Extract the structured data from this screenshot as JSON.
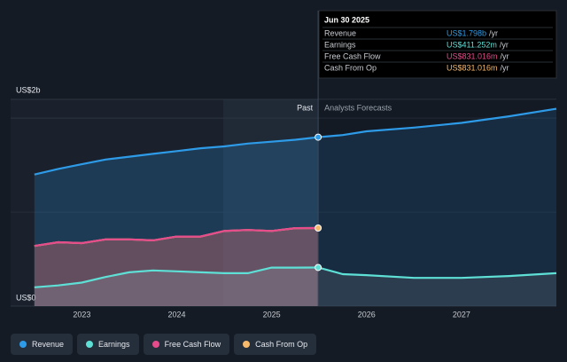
{
  "chart_data": {
    "type": "line",
    "x": [
      2022.5,
      2022.75,
      2023,
      2023.25,
      2023.5,
      2023.75,
      2024,
      2024.25,
      2024.5,
      2024.75,
      2025,
      2025.25,
      2025.49,
      2025.75,
      2026,
      2026.5,
      2027,
      2027.5,
      2028
    ],
    "series": [
      {
        "name": "Revenue",
        "color": "#2e9be8",
        "values": [
          1.4,
          1.46,
          1.51,
          1.56,
          1.59,
          1.62,
          1.65,
          1.68,
          1.7,
          1.73,
          1.75,
          1.77,
          1.798,
          1.82,
          1.86,
          1.9,
          1.95,
          2.02,
          2.1
        ]
      },
      {
        "name": "Earnings",
        "color": "#5ee0d6",
        "values": [
          0.2,
          0.22,
          0.25,
          0.31,
          0.36,
          0.38,
          0.37,
          0.36,
          0.35,
          0.35,
          0.41,
          0.41,
          0.411,
          0.34,
          0.33,
          0.3,
          0.3,
          0.32,
          0.35
        ]
      },
      {
        "name": "Free Cash Flow",
        "color": "#e64c8c",
        "values": [
          0.64,
          0.68,
          0.67,
          0.71,
          0.71,
          0.7,
          0.74,
          0.74,
          0.8,
          0.81,
          0.8,
          0.83,
          0.831,
          null,
          null,
          null,
          null,
          null,
          null
        ]
      },
      {
        "name": "Cash From Op",
        "color": "#f7b96a",
        "values": [
          0.64,
          0.68,
          0.67,
          0.71,
          0.71,
          0.7,
          0.74,
          0.74,
          0.8,
          0.81,
          0.8,
          0.83,
          0.831,
          null,
          null,
          null,
          null,
          null,
          null
        ]
      }
    ],
    "xlim": [
      2022.25,
      2028.0
    ],
    "xticks": [
      2023,
      2024,
      2025,
      2026,
      2027
    ],
    "ylim": [
      0,
      2.2
    ],
    "yticks": [
      {
        "value": 0,
        "label": "US$0"
      },
      {
        "value": 2,
        "label": "US$2b"
      }
    ],
    "grid": true,
    "past_end": 2025.49,
    "past_label": "Past",
    "forecast_label": "Analysts Forecasts",
    "tooltip": {
      "date": "Jun 30 2025",
      "unit": "/yr",
      "rows": [
        {
          "label": "Revenue",
          "value": "US$1.798b"
        },
        {
          "label": "Earnings",
          "value": "US$411.252m"
        },
        {
          "label": "Free Cash Flow",
          "value": "US$831.016m"
        },
        {
          "label": "Cash From Op",
          "value": "US$831.016m"
        }
      ]
    }
  }
}
